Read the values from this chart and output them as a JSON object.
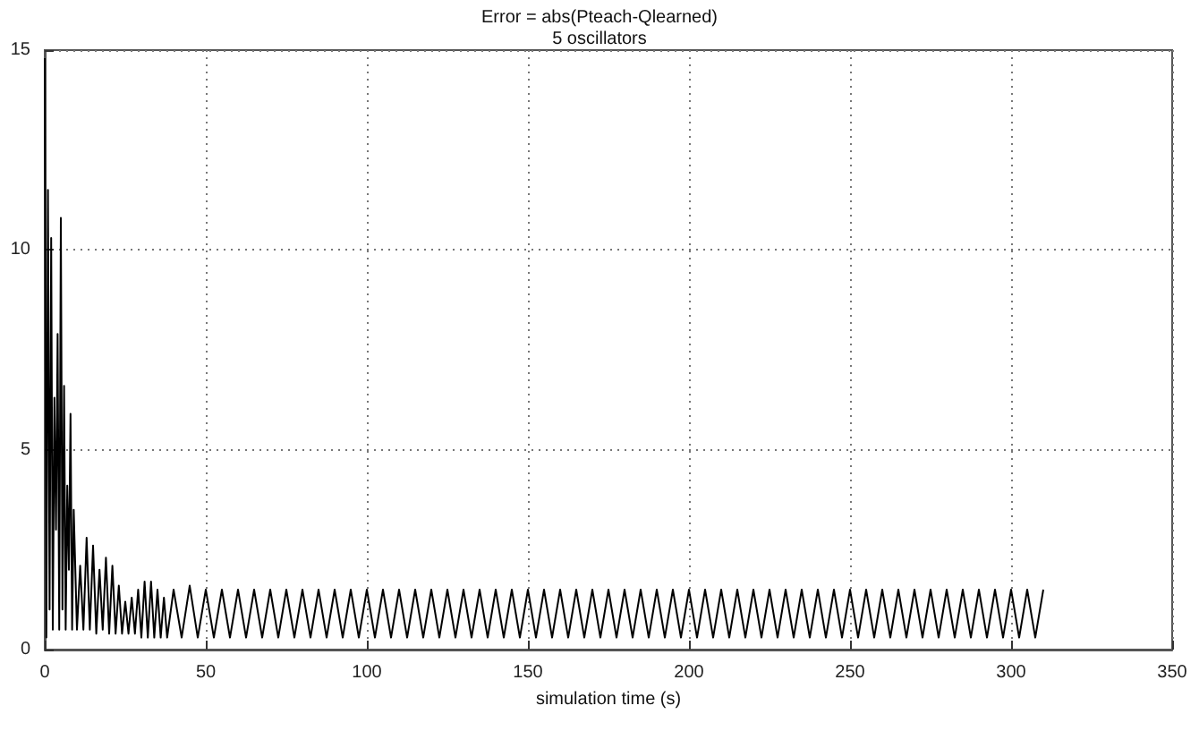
{
  "chart_data": {
    "type": "line",
    "title": "Error = abs(Pteach-Qlearned)",
    "subtitle": "5 oscillators",
    "xlabel": "simulation time (s)",
    "xlim": [
      0,
      350
    ],
    "xticks": [
      0,
      50,
      100,
      150,
      200,
      250,
      300,
      350
    ],
    "ylim": [
      0,
      15
    ],
    "yticks": [
      0,
      5,
      10,
      15
    ],
    "grid": true,
    "marker": "none",
    "line_style": "solid",
    "series": [
      {
        "color": "#000000",
        "x": [
          0,
          0.5,
          1,
          1.5,
          2,
          2.5,
          3,
          3.5,
          4,
          4.5,
          5,
          5.5,
          6,
          6.5,
          7,
          7.5,
          8,
          8.5,
          9,
          10,
          11,
          12,
          13,
          14,
          15,
          16,
          17,
          18,
          19,
          20,
          21,
          22,
          23,
          24,
          25,
          26,
          27,
          28,
          29,
          30,
          31,
          32,
          33,
          34,
          35,
          36,
          37,
          38,
          40,
          42.5,
          45,
          47.5,
          50,
          52.5,
          55,
          57.5,
          60,
          62.5,
          65,
          67.5,
          70,
          72.5,
          75,
          77.5,
          80,
          82.5,
          85,
          87.5,
          90,
          92.5,
          95,
          97.5,
          100,
          102.5,
          105,
          107.5,
          110,
          112.5,
          115,
          117.5,
          120,
          122.5,
          125,
          127.5,
          130,
          132.5,
          135,
          137.5,
          140,
          142.5,
          145,
          147.5,
          150,
          152.5,
          155,
          157.5,
          160,
          162.5,
          165,
          167.5,
          170,
          172.5,
          175,
          177.5,
          180,
          182.5,
          185,
          187.5,
          190,
          192.5,
          195,
          197.5,
          200,
          202.5,
          205,
          207.5,
          210,
          212.5,
          215,
          217.5,
          220,
          222.5,
          225,
          227.5,
          230,
          232.5,
          235,
          237.5,
          240,
          242.5,
          245,
          247.5,
          250,
          252.5,
          255,
          257.5,
          260,
          262.5,
          265,
          267.5,
          270,
          272.5,
          275,
          277.5,
          280,
          282.5,
          285,
          287.5,
          290,
          292.5,
          295,
          297.5,
          300,
          302.5,
          305,
          307.5,
          310
        ],
        "values": [
          14.8,
          0.3,
          11.5,
          1.0,
          10.3,
          0.5,
          6.3,
          3.0,
          7.9,
          0.5,
          10.8,
          1.0,
          6.6,
          0.5,
          4.1,
          2.0,
          5.9,
          0.5,
          3.5,
          0.5,
          2.1,
          0.5,
          2.8,
          0.5,
          2.6,
          0.4,
          2.0,
          0.5,
          2.3,
          0.4,
          2.1,
          0.4,
          1.6,
          0.4,
          1.2,
          0.4,
          1.3,
          0.4,
          1.5,
          0.3,
          1.7,
          0.3,
          1.7,
          0.3,
          1.5,
          0.3,
          1.3,
          0.3,
          1.5,
          0.3,
          1.6,
          0.3,
          1.5,
          0.3,
          1.5,
          0.3,
          1.5,
          0.3,
          1.5,
          0.3,
          1.5,
          0.3,
          1.5,
          0.3,
          1.5,
          0.3,
          1.5,
          0.3,
          1.5,
          0.3,
          1.5,
          0.3,
          1.5,
          0.3,
          1.5,
          0.3,
          1.5,
          0.3,
          1.5,
          0.3,
          1.5,
          0.3,
          1.5,
          0.3,
          1.5,
          0.3,
          1.5,
          0.3,
          1.5,
          0.3,
          1.5,
          0.3,
          1.5,
          0.3,
          1.5,
          0.3,
          1.5,
          0.3,
          1.5,
          0.3,
          1.5,
          0.3,
          1.5,
          0.3,
          1.5,
          0.3,
          1.5,
          0.3,
          1.5,
          0.3,
          1.5,
          0.3,
          1.5,
          0.3,
          1.5,
          0.3,
          1.5,
          0.3,
          1.5,
          0.3,
          1.5,
          0.3,
          1.5,
          0.3,
          1.5,
          0.3,
          1.5,
          0.3,
          1.5,
          0.3,
          1.5,
          0.3,
          1.5,
          0.3,
          1.5,
          0.3,
          1.5,
          0.3,
          1.5,
          0.3,
          1.5,
          0.3,
          1.5,
          0.3,
          1.5,
          0.3,
          1.5,
          0.3,
          1.5,
          0.3,
          1.5,
          0.3,
          1.5,
          0.3,
          1.5,
          0.3,
          1.5
        ]
      }
    ]
  }
}
